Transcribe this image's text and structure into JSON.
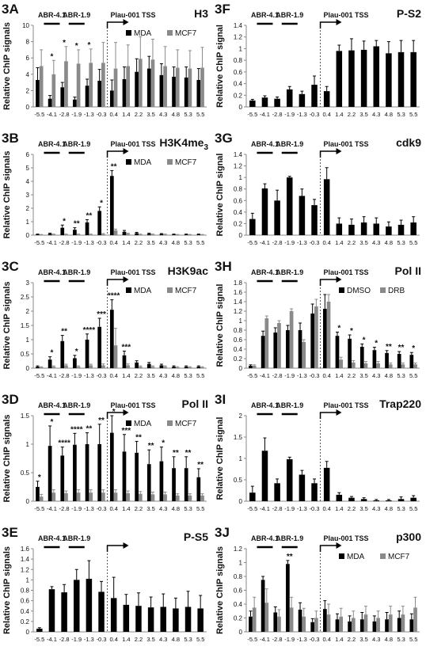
{
  "chart_data": [
    {
      "id": "3A",
      "type": "bar",
      "title": "H3",
      "title_sub": "",
      "ylabel": "Relative ChIP signals",
      "ylim": [
        0,
        10
      ],
      "ystep": 2,
      "categories": [
        "-5.5",
        "-4.1",
        "-2.8",
        "-1.9",
        "-1.3",
        "-0.3",
        "0.4",
        "1.4",
        "2.2",
        "3.5",
        "4.3",
        "4.8",
        "5.3",
        "5.5"
      ],
      "regions": [
        "ABR-4.1",
        "ABR-1.9"
      ],
      "tss_label": "Plau-001 TSS",
      "legend": [
        "MDA",
        "MCF7"
      ],
      "series": [
        {
          "name": "MDA",
          "color": "#000000",
          "values": [
            3.3,
            1.0,
            2.4,
            0.9,
            2.6,
            3.2,
            2.0,
            3.4,
            4.3,
            4.7,
            3.9,
            3.7,
            3.6,
            3.3
          ],
          "errors": [
            1.5,
            0.4,
            0.6,
            0.3,
            0.8,
            1.4,
            1.3,
            1.5,
            1.6,
            1.5,
            1.4,
            1.2,
            1.3,
            1.4
          ]
        },
        {
          "name": "MCF7",
          "color": "#8a8a8a",
          "values": [
            5.0,
            4.0,
            5.6,
            5.3,
            5.4,
            5.4,
            4.7,
            5.0,
            5.9,
            5.8,
            5.0,
            4.8,
            4.7,
            4.8
          ],
          "errors": [
            2.0,
            1.7,
            1.8,
            1.7,
            1.7,
            2.5,
            3.2,
            2.6,
            2.7,
            2.5,
            2.4,
            2.2,
            2.2,
            2.5
          ]
        }
      ],
      "stars": [
        "",
        "*",
        "*",
        "*",
        "*",
        "",
        "",
        "",
        "",
        "",
        "",
        "",
        "",
        ""
      ]
    },
    {
      "id": "3B",
      "type": "bar",
      "title": "H3K4me",
      "title_sub": "3",
      "ylabel": "Relative ChIP signals",
      "ylim": [
        0,
        6
      ],
      "ystep": 1,
      "categories": [
        "-5.5",
        "-4.1",
        "-2.8",
        "-1.9",
        "-1.3",
        "-0.3",
        "0.4",
        "1.4",
        "2.2",
        "3.5",
        "4.3",
        "4.8",
        "5.3",
        "5.5"
      ],
      "regions": [
        "ABR-4.1",
        "ABR-1.9"
      ],
      "tss_label": "Plau-001 TSS",
      "legend": [
        "MDA",
        "MCF7"
      ],
      "series": [
        {
          "name": "MDA",
          "color": "#000000",
          "values": [
            0.05,
            0.1,
            0.55,
            0.4,
            0.95,
            1.8,
            4.4,
            0.25,
            0.15,
            0.1,
            0.08,
            0.05,
            0.05,
            0.05
          ],
          "errors": [
            0.03,
            0.05,
            0.2,
            0.15,
            0.2,
            0.3,
            0.4,
            0.1,
            0.06,
            0.05,
            0.04,
            0.03,
            0.03,
            0.03
          ]
        },
        {
          "name": "MCF7",
          "color": "#8a8a8a",
          "values": [
            0.03,
            0.05,
            0.05,
            0.05,
            0.05,
            0.08,
            0.35,
            0.1,
            0.05,
            0.05,
            0.05,
            0.03,
            0.03,
            0.03
          ],
          "errors": [
            0.02,
            0.03,
            0.03,
            0.03,
            0.03,
            0.04,
            0.1,
            0.05,
            0.03,
            0.03,
            0.03,
            0.02,
            0.02,
            0.02
          ]
        }
      ],
      "stars": [
        "",
        "",
        "*",
        "**",
        "**",
        "*",
        "**",
        "",
        "",
        "",
        "",
        "",
        "",
        ""
      ]
    },
    {
      "id": "3C",
      "type": "bar",
      "title": "H3K9ac",
      "title_sub": "",
      "ylabel": "Relative ChIP signals",
      "ylim": [
        0,
        3
      ],
      "ystep": 0.5,
      "categories": [
        "-5.5",
        "-4.1",
        "-2.8",
        "-1.9",
        "-1.3",
        "-0.3",
        "0.4",
        "1.4",
        "2.2",
        "3.5",
        "4.3",
        "4.8",
        "5.3",
        "5.5"
      ],
      "regions": [
        "ABR-4.1",
        "ABR-1.9"
      ],
      "tss_label": "Plau-001 TSS",
      "legend": [
        "MDA",
        "MCF7"
      ],
      "series": [
        {
          "name": "MDA",
          "color": "#000000",
          "values": [
            0.05,
            0.3,
            0.95,
            0.35,
            1.0,
            1.45,
            2.05,
            0.45,
            0.2,
            0.15,
            0.1,
            0.05,
            0.05,
            0.05
          ],
          "errors": [
            0.03,
            0.1,
            0.2,
            0.1,
            0.2,
            0.3,
            0.35,
            0.15,
            0.06,
            0.05,
            0.04,
            0.03,
            0.03,
            0.03
          ]
        },
        {
          "name": "MCF7",
          "color": "#8a8a8a",
          "values": [
            0.03,
            0.05,
            0.1,
            0.05,
            0.1,
            0.1,
            0.8,
            0.1,
            0.05,
            0.05,
            0.05,
            0.03,
            0.03,
            0.03
          ],
          "errors": [
            0.02,
            0.03,
            0.04,
            0.03,
            0.04,
            0.05,
            0.6,
            0.05,
            0.03,
            0.03,
            0.03,
            0.02,
            0.02,
            0.02
          ]
        }
      ],
      "stars": [
        "",
        "*",
        "**",
        "*",
        "****",
        "***",
        "****",
        "***",
        "",
        "",
        "",
        "",
        "",
        ""
      ]
    },
    {
      "id": "3D",
      "type": "bar",
      "title": "Pol II",
      "title_sub": "",
      "ylabel": "Relative ChIP signals",
      "ylim": [
        0,
        1.5
      ],
      "ystep": 0.5,
      "categories": [
        "-5.5",
        "-4.1",
        "-2.8",
        "-1.9",
        "-1.3",
        "-0.3",
        "0.4",
        "1.4",
        "2.2",
        "3.5",
        "4.3",
        "4.8",
        "5.3",
        "5.5"
      ],
      "regions": [
        "ABR-4.1",
        "ABR-1.9"
      ],
      "tss_label": "Plau-001 TSS",
      "legend": [
        "MDA",
        "MCF7"
      ],
      "series": [
        {
          "name": "MDA",
          "color": "#000000",
          "values": [
            0.25,
            0.97,
            0.8,
            0.99,
            1.0,
            1.0,
            1.2,
            0.87,
            0.85,
            0.65,
            0.7,
            0.58,
            0.58,
            0.42
          ],
          "errors": [
            0.1,
            0.35,
            0.15,
            0.2,
            0.2,
            0.35,
            0.3,
            0.3,
            0.2,
            0.25,
            0.25,
            0.2,
            0.2,
            0.15
          ]
        },
        {
          "name": "MCF7",
          "color": "#8a8a8a",
          "values": [
            0.08,
            0.15,
            0.14,
            0.15,
            0.15,
            0.15,
            0.15,
            0.14,
            0.13,
            0.12,
            0.12,
            0.1,
            0.1,
            0.1
          ],
          "errors": [
            0.04,
            0.05,
            0.04,
            0.05,
            0.05,
            0.05,
            0.05,
            0.04,
            0.04,
            0.04,
            0.04,
            0.03,
            0.03,
            0.03
          ]
        }
      ],
      "stars": [
        "*",
        "*",
        "****",
        "****",
        "**",
        "**",
        "*",
        "***",
        "**",
        "**",
        "*",
        "**",
        "**",
        "**"
      ]
    },
    {
      "id": "3E",
      "type": "bar",
      "title": "P-S5",
      "title_sub": "",
      "ylabel": "Relative ChIP signals",
      "ylim": [
        0,
        1.6
      ],
      "ystep": 0.2,
      "categories": [
        "-5.5",
        "-4.1",
        "-2.8",
        "-1.9",
        "-1.3",
        "-0.3",
        "0.4",
        "1.4",
        "2.2",
        "3.5",
        "4.3",
        "4.8",
        "5.3",
        "5.5"
      ],
      "regions": [
        "ABR-4.1",
        "ABR-1.9"
      ],
      "tss_label": "",
      "legend": [],
      "series": [
        {
          "name": "",
          "color": "#000000",
          "values": [
            0.06,
            0.82,
            0.76,
            1.0,
            1.02,
            0.77,
            0.65,
            0.52,
            0.5,
            0.47,
            0.48,
            0.45,
            0.48,
            0.45
          ],
          "errors": [
            0.02,
            0.05,
            0.15,
            0.2,
            0.35,
            0.2,
            0.4,
            0.2,
            0.25,
            0.2,
            0.25,
            0.2,
            0.3,
            0.25
          ]
        }
      ],
      "stars": []
    },
    {
      "id": "3F",
      "type": "bar",
      "title": "P-S2",
      "title_sub": "",
      "ylabel": "Relative ChIP signal",
      "ylim": [
        0,
        1.4
      ],
      "ystep": 0.2,
      "categories": [
        "-5.5",
        "-4.1",
        "-2.8",
        "-1.9",
        "-1.3",
        "-0.3",
        "0.4",
        "1.4",
        "2.2",
        "3.5",
        "4.3",
        "4.8",
        "5.3",
        "5.5"
      ],
      "regions": [
        "ABR-4.1",
        "ABR-1.9"
      ],
      "tss_label": "Plau-001 TSS",
      "legend": [],
      "series": [
        {
          "name": "",
          "color": "#000000",
          "values": [
            0.11,
            0.16,
            0.14,
            0.3,
            0.22,
            0.38,
            0.27,
            0.96,
            0.97,
            0.98,
            1.04,
            0.92,
            0.94,
            0.94
          ],
          "errors": [
            0.02,
            0.03,
            0.03,
            0.05,
            0.05,
            0.15,
            0.08,
            0.1,
            0.2,
            0.15,
            0.1,
            0.2,
            0.2,
            0.2
          ]
        }
      ],
      "stars": []
    },
    {
      "id": "3G",
      "type": "bar",
      "title": "cdk9",
      "title_sub": "",
      "ylabel": "Relative ChIP signal",
      "ylim": [
        0,
        1.4
      ],
      "ystep": 0.2,
      "categories": [
        "-5.5",
        "-4.1",
        "-2.8",
        "-1.9",
        "-1.3",
        "-0.3",
        "0.4",
        "1.4",
        "2.2",
        "3.5",
        "4.3",
        "4.8",
        "5.3",
        "5.5"
      ],
      "regions": [
        "ABR-4.1",
        "ABR-1.9"
      ],
      "tss_label": "Plau-001 TSS",
      "legend": [],
      "series": [
        {
          "name": "",
          "color": "#000000",
          "values": [
            0.28,
            0.81,
            0.6,
            1.0,
            0.68,
            0.52,
            0.97,
            0.2,
            0.18,
            0.22,
            0.2,
            0.15,
            0.18,
            0.22
          ],
          "errors": [
            0.1,
            0.08,
            0.18,
            0.02,
            0.12,
            0.1,
            0.2,
            0.1,
            0.1,
            0.1,
            0.1,
            0.08,
            0.08,
            0.1
          ]
        }
      ],
      "stars": []
    },
    {
      "id": "3H",
      "type": "bar",
      "title": "Pol II",
      "title_sub": "",
      "ylabel": "Relative ChIP signal",
      "ylim": [
        0,
        1.8
      ],
      "ystep": 0.2,
      "categories": [
        "-5.5",
        "-4.1",
        "-2.8",
        "-1.9",
        "-1.3",
        "-0.3",
        "0.4",
        "1.4",
        "2.2",
        "3.5",
        "4.3",
        "4.8",
        "5.3",
        "5.5"
      ],
      "regions": [
        "ABR-4.1",
        "ABR-1.9"
      ],
      "tss_label": "Plau-001 TSS",
      "legend": [
        "DMSO",
        "DRB"
      ],
      "series": [
        {
          "name": "DMSO",
          "color": "#000000",
          "values": [
            0.05,
            0.68,
            0.75,
            0.8,
            0.8,
            1.15,
            1.25,
            0.68,
            0.62,
            0.45,
            0.38,
            0.32,
            0.3,
            0.28
          ],
          "errors": [
            0.02,
            0.1,
            0.1,
            0.1,
            0.15,
            0.2,
            0.3,
            0.08,
            0.08,
            0.06,
            0.06,
            0.05,
            0.05,
            0.05
          ]
        },
        {
          "name": "DRB",
          "color": "#8a8a8a",
          "values": [
            0.05,
            1.05,
            0.95,
            1.2,
            0.55,
            1.3,
            1.4,
            0.18,
            0.12,
            0.1,
            0.1,
            0.08,
            0.08,
            0.08
          ],
          "errors": [
            0.02,
            0.05,
            0.05,
            0.05,
            0.05,
            0.15,
            0.15,
            0.05,
            0.04,
            0.04,
            0.04,
            0.03,
            0.03,
            0.03
          ]
        }
      ],
      "stars": [
        "",
        "",
        "",
        "",
        "",
        "",
        "",
        "*",
        "*",
        "*",
        "*",
        "**",
        "**",
        "*"
      ]
    },
    {
      "id": "3I",
      "type": "bar",
      "title": "Trap220",
      "title_sub": "",
      "ylabel": "Relative ChIP signal",
      "ylim": [
        0,
        2
      ],
      "ystep": 0.5,
      "categories": [
        "-5.5",
        "-4.1",
        "-2.8",
        "-1.9",
        "-1.3",
        "-0.3",
        "0.4",
        "1.4",
        "2.2",
        "3.5",
        "4.3",
        "4.8",
        "5.3",
        "5.5"
      ],
      "regions": [
        "ABR-4.1",
        "ABR-1.9"
      ],
      "tss_label": "Plau-001 TSS",
      "legend": [],
      "series": [
        {
          "name": "",
          "color": "#000000",
          "values": [
            0.2,
            1.18,
            0.42,
            0.98,
            0.62,
            0.42,
            0.78,
            0.15,
            0.08,
            0.05,
            0.02,
            0.02,
            0.05,
            0.08
          ],
          "errors": [
            0.15,
            0.3,
            0.1,
            0.05,
            0.1,
            0.1,
            0.15,
            0.05,
            0.03,
            0.03,
            0.02,
            0.02,
            0.05,
            0.05
          ]
        }
      ],
      "stars": []
    },
    {
      "id": "3J",
      "type": "bar",
      "title": "p300",
      "title_sub": "",
      "ylabel": "Relative ChIP signals",
      "ylim": [
        0,
        1.2
      ],
      "ystep": 0.2,
      "categories": [
        "-5.5",
        "-4.1",
        "-2.8",
        "-1.9",
        "-1.3",
        "-0.3",
        "0.4",
        "1.4",
        "2.2",
        "3.5",
        "4.3",
        "4.8",
        "5.3",
        "5.5"
      ],
      "regions": [
        "ABR-4.1",
        "ABR-1.9"
      ],
      "tss_label": "Plau-001 TSS",
      "legend": [
        "MDA",
        "MCF7"
      ],
      "series": [
        {
          "name": "MDA",
          "color": "#000000",
          "values": [
            0.22,
            0.75,
            0.28,
            0.98,
            0.32,
            0.14,
            0.33,
            0.18,
            0.15,
            0.18,
            0.15,
            0.18,
            0.2,
            0.18
          ],
          "errors": [
            0.08,
            0.05,
            0.08,
            0.05,
            0.1,
            0.05,
            0.12,
            0.08,
            0.08,
            0.1,
            0.08,
            0.1,
            0.1,
            0.08
          ]
        },
        {
          "name": "MCF7",
          "color": "#8a8a8a",
          "values": [
            0.35,
            0.42,
            0.22,
            0.35,
            0.22,
            0.2,
            0.25,
            0.22,
            0.2,
            0.25,
            0.2,
            0.25,
            0.25,
            0.35
          ],
          "errors": [
            0.15,
            0.2,
            0.1,
            0.15,
            0.12,
            0.1,
            0.15,
            0.12,
            0.1,
            0.12,
            0.1,
            0.12,
            0.12,
            0.15
          ]
        }
      ],
      "stars": [
        "",
        "",
        "",
        "**",
        "",
        "",
        "",
        "",
        "",
        "",
        "",
        "",
        "",
        ""
      ]
    }
  ]
}
